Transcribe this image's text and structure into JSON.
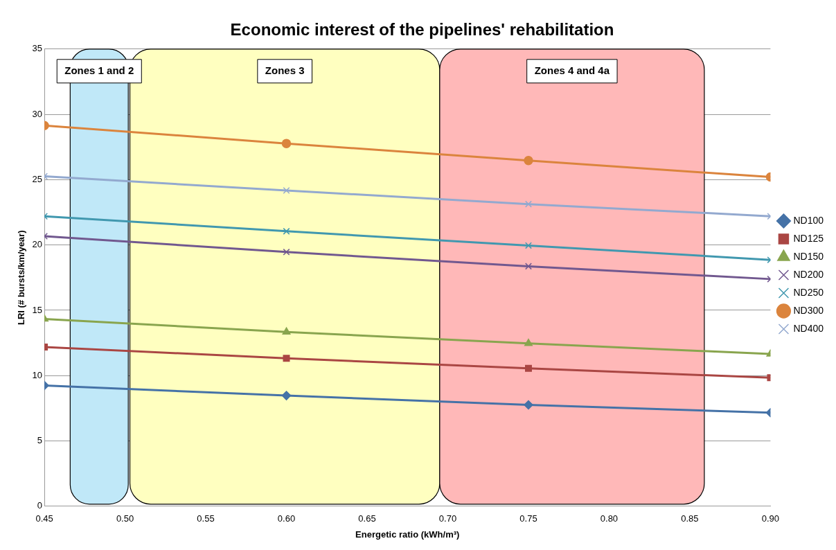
{
  "chart_data": {
    "type": "line",
    "title": "Economic interest of the pipelines' rehabilitation",
    "xlabel": "Energetic ratio (kWh/m³)",
    "ylabel": "LRI (# bursts/km/year)",
    "x": [
      0.45,
      0.6,
      0.75,
      0.9
    ],
    "series": [
      {
        "name": "ND100",
        "color": "#4572a7",
        "marker": "diamond",
        "values": [
          9.24,
          8.47,
          7.76,
          7.16
        ]
      },
      {
        "name": "ND125",
        "color": "#aa4643",
        "marker": "square",
        "values": [
          12.19,
          11.32,
          10.55,
          9.84
        ]
      },
      {
        "name": "ND150",
        "color": "#89a54e",
        "marker": "triangle",
        "values": [
          14.33,
          13.34,
          12.47,
          11.65
        ]
      },
      {
        "name": "ND200",
        "color": "#71588f",
        "marker": "cross",
        "values": [
          20.67,
          19.46,
          18.37,
          17.39
        ]
      },
      {
        "name": "ND250",
        "color": "#4198af",
        "marker": "cross",
        "values": [
          22.2,
          21.05,
          19.96,
          18.86
        ]
      },
      {
        "name": "ND300",
        "color": "#db843d",
        "marker": "circle",
        "values": [
          29.14,
          27.77,
          26.46,
          25.2
        ]
      },
      {
        "name": "ND400",
        "color": "#93a9cf",
        "marker": "cross",
        "values": [
          25.26,
          24.17,
          23.13,
          22.2
        ]
      }
    ],
    "bands": [
      {
        "axis": "x",
        "from": 0.466,
        "to": 0.502,
        "label": "Zones 1 and 2",
        "color": "#c0e8f8"
      },
      {
        "axis": "x",
        "from": 0.503,
        "to": 0.695,
        "label": "Zones 3",
        "color": "#ffffc0"
      },
      {
        "axis": "x",
        "from": 0.695,
        "to": 0.859,
        "label": "Zones 4 and 4a",
        "color": "#ffb8b8"
      }
    ],
    "xlim": [
      0.45,
      0.9
    ],
    "xticks": [
      {
        "value": 0.45,
        "label": "0.45"
      },
      {
        "value": 0.5,
        "label": "0.50"
      },
      {
        "value": 0.55,
        "label": "0.55"
      },
      {
        "value": 0.6,
        "label": "0.60"
      },
      {
        "value": 0.65,
        "label": "0.65"
      },
      {
        "value": 0.7,
        "label": "0.70"
      },
      {
        "value": 0.75,
        "label": "0.75"
      },
      {
        "value": 0.8,
        "label": "0.80"
      },
      {
        "value": 0.85,
        "label": "0.85"
      },
      {
        "value": 0.9,
        "label": "0.90"
      }
    ],
    "ylim": [
      0,
      35
    ],
    "yticks": [
      0,
      5,
      10,
      15,
      20,
      25,
      30,
      35
    ],
    "grid": "y",
    "legend": "right",
    "line_style": "solid"
  }
}
